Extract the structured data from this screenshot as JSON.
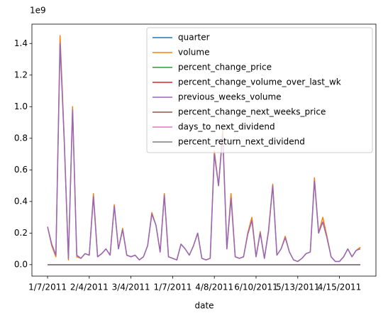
{
  "chart_data": {
    "type": "line",
    "offset_label": "1e9",
    "x_label": "date",
    "x": [
      0,
      10,
      20,
      30,
      40,
      50,
      60,
      70,
      80,
      90,
      100,
      110,
      120,
      130,
      140,
      150,
      160,
      170,
      180,
      190,
      200,
      210,
      220,
      230,
      240,
      250,
      260,
      270,
      280,
      290,
      300,
      310,
      320,
      330,
      340,
      350,
      360,
      370,
      380,
      390,
      400,
      410,
      420,
      430,
      440,
      450,
      460,
      470,
      480,
      490,
      500,
      510,
      520,
      530,
      540,
      550,
      560,
      570,
      580,
      590,
      600,
      610,
      620,
      630,
      640,
      650,
      660,
      670,
      680,
      690,
      700,
      710,
      720,
      730,
      740,
      750
    ],
    "xlim": [
      -37.5,
      787.5
    ],
    "xticks": [
      {
        "value": 0,
        "label": "1/7/2011"
      },
      {
        "value": 100,
        "label": "2/4/2011"
      },
      {
        "value": 200,
        "label": "3/4/2011"
      },
      {
        "value": 300,
        "label": "1/7/2011"
      },
      {
        "value": 400,
        "label": "4/8/2011"
      },
      {
        "value": 500,
        "label": "6/10/2011"
      },
      {
        "value": 600,
        "label": "5/13/2011"
      },
      {
        "value": 700,
        "label": "4/15/2011"
      }
    ],
    "ylim": [
      -0.0725,
      1.5225
    ],
    "yticks": [
      {
        "value": 0,
        "label": "0.0"
      },
      0.2,
      0.4,
      0.6,
      0.8,
      {
        "value": 1,
        "label": "1.0"
      },
      1.2,
      1.4
    ],
    "legend": "upper right",
    "series": [
      {
        "name": "quarter",
        "color": "#1f77b4",
        "values": [
          0,
          0,
          0,
          0,
          0,
          0,
          0,
          0,
          0,
          0,
          0,
          0,
          0,
          0,
          0,
          0,
          0,
          0,
          0,
          0,
          0,
          0,
          0,
          0,
          0,
          0,
          0,
          0,
          0,
          0,
          0,
          0,
          0,
          0,
          0,
          0,
          0,
          0,
          0,
          0,
          0,
          0,
          0,
          0,
          0,
          0,
          0,
          0,
          0,
          0,
          0,
          0,
          0,
          0,
          0,
          0,
          0,
          0,
          0,
          0,
          0,
          0,
          0,
          0,
          0,
          0,
          0,
          0,
          0,
          0,
          0,
          0,
          0,
          0,
          0,
          0
        ]
      },
      {
        "name": "volume",
        "color": "#ff7f0e",
        "values": [
          0.24,
          0.12,
          0.05,
          1.45,
          0.8,
          0.03,
          1.0,
          0.05,
          0.04,
          0.07,
          0.06,
          0.45,
          0.05,
          0.07,
          0.1,
          0.06,
          0.38,
          0.1,
          0.23,
          0.06,
          0.05,
          0.06,
          0.03,
          0.05,
          0.12,
          0.33,
          0.25,
          0.08,
          0.45,
          0.05,
          0.04,
          0.03,
          0.13,
          0.1,
          0.06,
          0.12,
          0.2,
          0.04,
          0.03,
          0.04,
          0.72,
          0.5,
          0.85,
          0.1,
          0.45,
          0.05,
          0.04,
          0.05,
          0.2,
          0.3,
          0.05,
          0.21,
          0.04,
          0.22,
          0.51,
          0.06,
          0.1,
          0.18,
          0.08,
          0.03,
          0.02,
          0.04,
          0.07,
          0.08,
          0.55,
          0.2,
          0.3,
          0.18,
          0.05,
          0.02,
          0.02,
          0.05,
          0.1,
          0.05,
          0.09,
          0.11
        ]
      },
      {
        "name": "percent_change_price",
        "color": "#2ca02c",
        "values": [
          0,
          0,
          0,
          0,
          0,
          0,
          0,
          0,
          0,
          0,
          0,
          0,
          0,
          0,
          0,
          0,
          0,
          0,
          0,
          0,
          0,
          0,
          0,
          0,
          0,
          0,
          0,
          0,
          0,
          0,
          0,
          0,
          0,
          0,
          0,
          0,
          0,
          0,
          0,
          0,
          0,
          0,
          0,
          0,
          0,
          0,
          0,
          0,
          0,
          0,
          0,
          0,
          0,
          0,
          0,
          0,
          0,
          0,
          0,
          0,
          0,
          0,
          0,
          0,
          0,
          0,
          0,
          0,
          0,
          0,
          0,
          0,
          0,
          0,
          0,
          0
        ]
      },
      {
        "name": "percent_change_volume_over_last_wk",
        "color": "#d62728",
        "values": [
          0,
          0,
          0,
          0,
          0,
          0,
          0,
          0,
          0,
          0,
          0,
          0,
          0,
          0,
          0,
          0,
          0,
          0,
          0,
          0,
          0,
          0,
          0,
          0,
          0,
          0,
          0,
          0,
          0,
          0,
          0,
          0,
          0,
          0,
          0,
          0,
          0,
          0,
          0,
          0,
          0,
          0,
          0,
          0,
          0,
          0,
          0,
          0,
          0,
          0,
          0,
          0,
          0,
          0,
          0,
          0,
          0,
          0,
          0,
          0,
          0,
          0,
          0,
          0,
          0,
          0,
          0,
          0,
          0,
          0,
          0,
          0,
          0,
          0,
          0,
          0
        ]
      },
      {
        "name": "previous_weeks_volume",
        "color": "#9467bd",
        "values": [
          0.24,
          0.13,
          0.06,
          1.4,
          0.78,
          0.04,
          0.98,
          0.06,
          0.04,
          0.07,
          0.06,
          0.43,
          0.05,
          0.07,
          0.1,
          0.06,
          0.37,
          0.1,
          0.22,
          0.06,
          0.05,
          0.06,
          0.03,
          0.05,
          0.12,
          0.32,
          0.25,
          0.08,
          0.44,
          0.05,
          0.04,
          0.03,
          0.13,
          0.1,
          0.06,
          0.12,
          0.2,
          0.04,
          0.03,
          0.04,
          0.7,
          0.5,
          0.82,
          0.1,
          0.42,
          0.05,
          0.04,
          0.05,
          0.19,
          0.28,
          0.05,
          0.2,
          0.04,
          0.21,
          0.5,
          0.06,
          0.1,
          0.17,
          0.08,
          0.03,
          0.02,
          0.04,
          0.07,
          0.08,
          0.53,
          0.2,
          0.27,
          0.17,
          0.05,
          0.02,
          0.02,
          0.05,
          0.1,
          0.05,
          0.09,
          0.1
        ]
      },
      {
        "name": "percent_change_next_weeks_price",
        "color": "#8c564b",
        "values": [
          0,
          0,
          0,
          0,
          0,
          0,
          0,
          0,
          0,
          0,
          0,
          0,
          0,
          0,
          0,
          0,
          0,
          0,
          0,
          0,
          0,
          0,
          0,
          0,
          0,
          0,
          0,
          0,
          0,
          0,
          0,
          0,
          0,
          0,
          0,
          0,
          0,
          0,
          0,
          0,
          0,
          0,
          0,
          0,
          0,
          0,
          0,
          0,
          0,
          0,
          0,
          0,
          0,
          0,
          0,
          0,
          0,
          0,
          0,
          0,
          0,
          0,
          0,
          0,
          0,
          0,
          0,
          0,
          0,
          0,
          0,
          0,
          0,
          0,
          0,
          0
        ]
      },
      {
        "name": "days_to_next_dividend",
        "color": "#e377c2",
        "values": [
          0,
          0,
          0,
          0,
          0,
          0,
          0,
          0,
          0,
          0,
          0,
          0,
          0,
          0,
          0,
          0,
          0,
          0,
          0,
          0,
          0,
          0,
          0,
          0,
          0,
          0,
          0,
          0,
          0,
          0,
          0,
          0,
          0,
          0,
          0,
          0,
          0,
          0,
          0,
          0,
          0,
          0,
          0,
          0,
          0,
          0,
          0,
          0,
          0,
          0,
          0,
          0,
          0,
          0,
          0,
          0,
          0,
          0,
          0,
          0,
          0,
          0,
          0,
          0,
          0,
          0,
          0,
          0,
          0,
          0,
          0,
          0,
          0,
          0,
          0,
          0
        ]
      },
      {
        "name": "percent_return_next_dividend",
        "color": "#7f7f7f",
        "values": [
          0,
          0,
          0,
          0,
          0,
          0,
          0,
          0,
          0,
          0,
          0,
          0,
          0,
          0,
          0,
          0,
          0,
          0,
          0,
          0,
          0,
          0,
          0,
          0,
          0,
          0,
          0,
          0,
          0,
          0,
          0,
          0,
          0,
          0,
          0,
          0,
          0,
          0,
          0,
          0,
          0,
          0,
          0,
          0,
          0,
          0,
          0,
          0,
          0,
          0,
          0,
          0,
          0,
          0,
          0,
          0,
          0,
          0,
          0,
          0,
          0,
          0,
          0,
          0,
          0,
          0,
          0,
          0,
          0,
          0,
          0,
          0,
          0,
          0,
          0,
          0
        ]
      }
    ]
  }
}
